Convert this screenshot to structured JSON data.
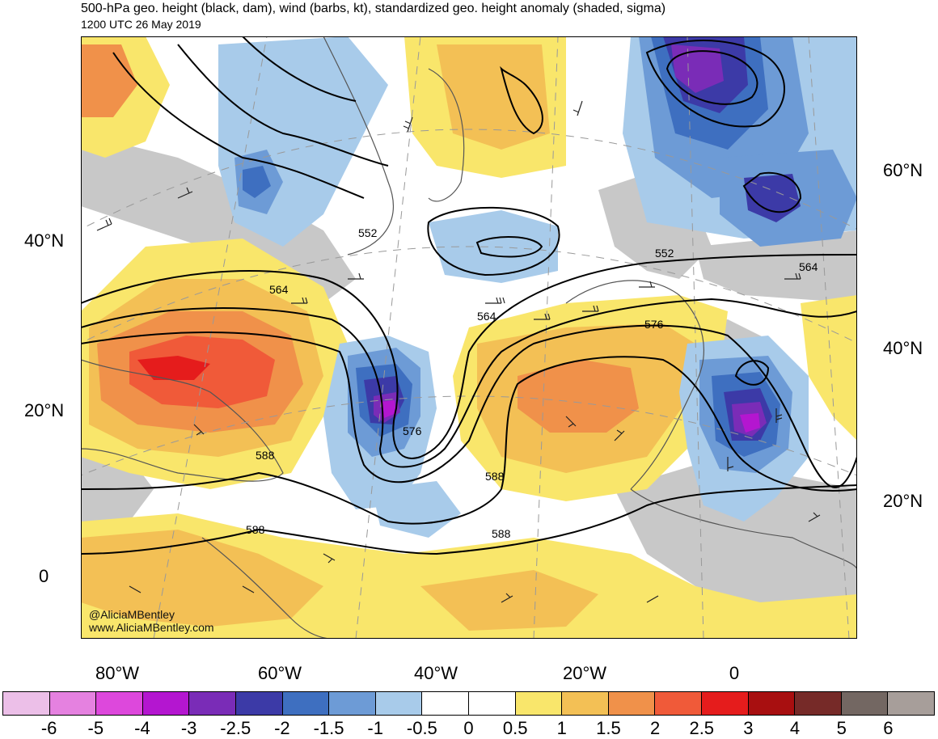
{
  "title": "500-hPa geo. height (black, dam), wind (barbs, kt), standardized geo. height anomaly (shaded, sigma)",
  "subtitle": "1200 UTC 26 May 2019",
  "lat_labels_left": [
    "40°N",
    "20°N",
    "0"
  ],
  "lat_labels_right": [
    "60°N",
    "40°N",
    "20°N"
  ],
  "lon_labels": [
    "80°W",
    "60°W",
    "40°W",
    "20°W",
    "0"
  ],
  "contour_labels": [
    "552",
    "552",
    "564",
    "564",
    "564",
    "576",
    "576",
    "588",
    "588",
    "588",
    "588"
  ],
  "credit": {
    "handle": "@AliciaMBentley",
    "site": "www.AliciaMBentley.com"
  },
  "colorbar": {
    "colors": [
      "#ecbfe8",
      "#e581e0",
      "#dd48dc",
      "#b416d0",
      "#7a2cb7",
      "#3c3aa7",
      "#3e6fc0",
      "#6d9bd6",
      "#a8cbea",
      "#ffffff",
      "#ffffff",
      "#f9e66b",
      "#f3c055",
      "#f0914a",
      "#f05a39",
      "#e51c1c",
      "#a80f10",
      "#762a28",
      "#736762",
      "#a79e9a"
    ],
    "tick_labels": [
      "-6",
      "-5",
      "-4",
      "-3",
      "-2.5",
      "-2",
      "-1.5",
      "-1",
      "-0.5",
      "0",
      "0.5",
      "1",
      "1.5",
      "2",
      "2.5",
      "3",
      "4",
      "5",
      "6"
    ]
  }
}
